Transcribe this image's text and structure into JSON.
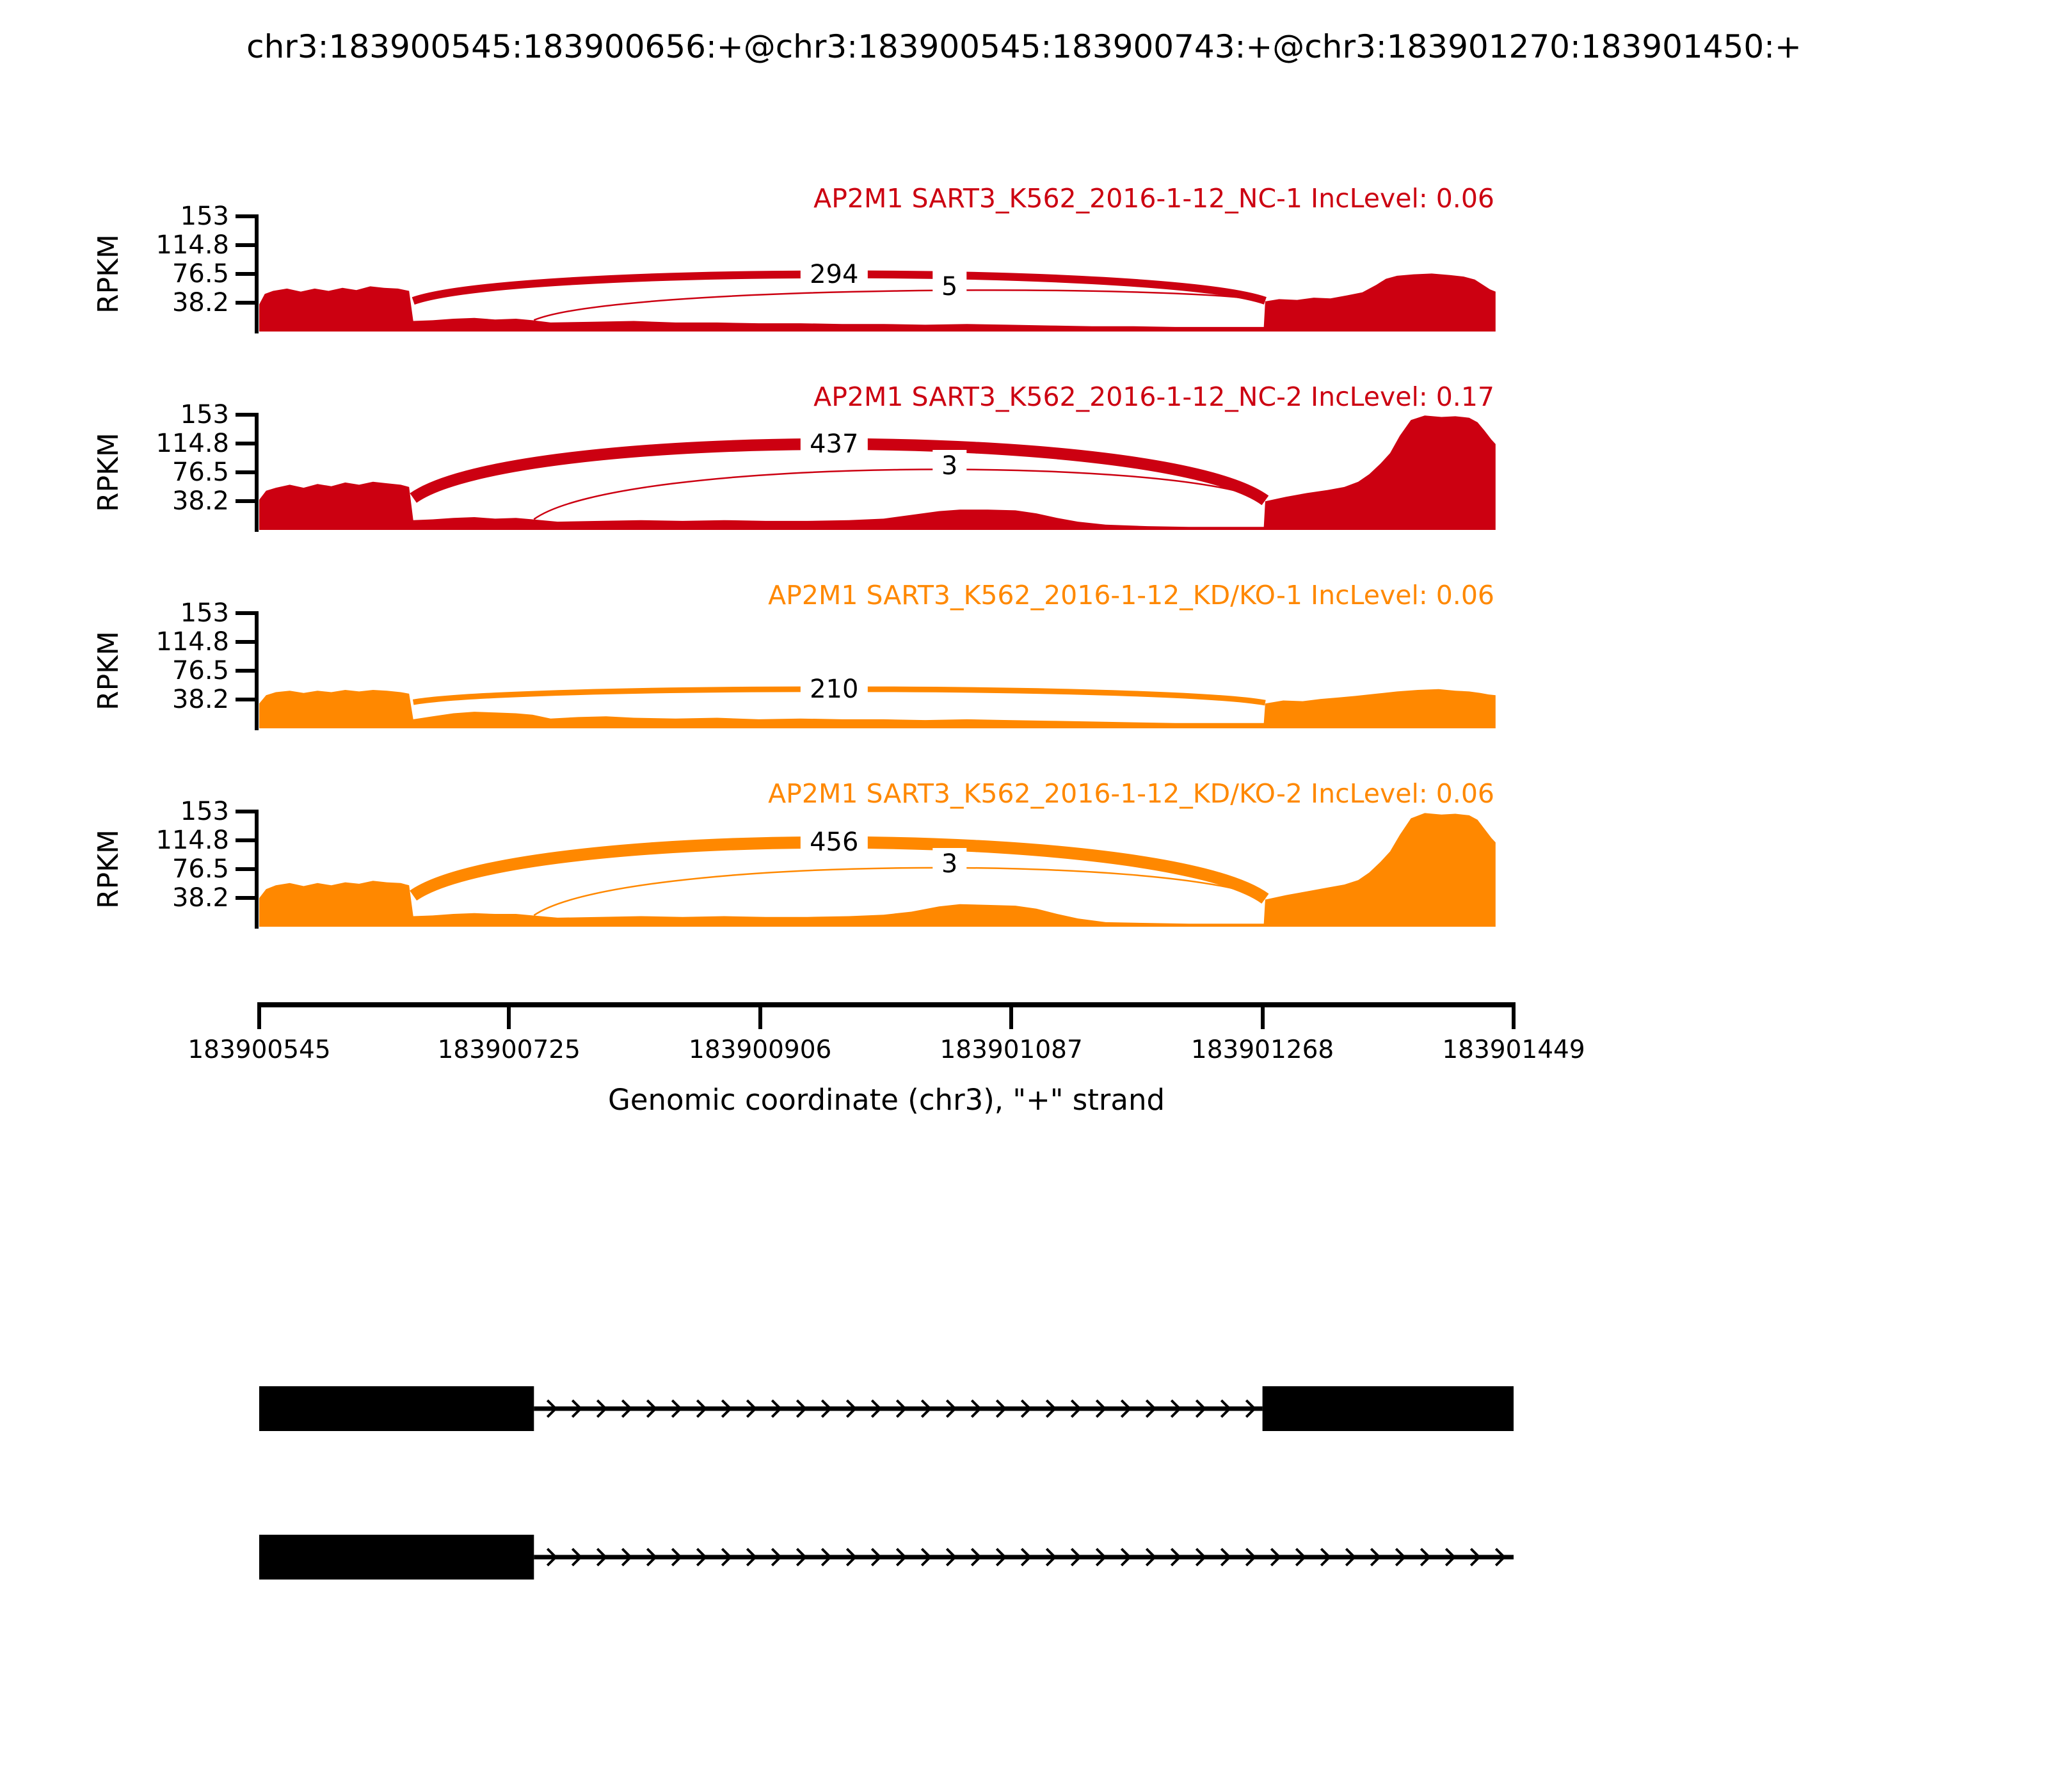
{
  "title": "chr3:183900545:183900656:+@chr3:183900545:183900743:+@chr3:183901270:183901450:+",
  "colors": {
    "group1": "#CC0011",
    "group2": "#FF8800",
    "axis": "#000000",
    "exon": "#000000"
  },
  "y_axis": {
    "label": "RPKM",
    "tick_labels": [
      "153",
      "114.8",
      "76.5",
      "38.2"
    ],
    "ticks": [
      153,
      114.8,
      76.5,
      38.2
    ],
    "ylim": [
      0,
      153
    ]
  },
  "x_axis": {
    "label": "Genomic coordinate (chr3), \"+\" strand",
    "start": 183900545,
    "end": 183901449,
    "ticks": [
      183900545,
      183900725,
      183900906,
      183901087,
      183901268,
      183901449
    ],
    "tick_labels": [
      "183900545",
      "183900725",
      "183900906",
      "183901087",
      "183901268",
      "183901449"
    ]
  },
  "chart_data": {
    "type": "area",
    "description": "rMATS sashimi plot: per-sample RPKM coverage with splice-junction arcs",
    "coverage_origin_bp": 183900545,
    "tracks": [
      {
        "label": "AP2M1 SART3_K562_2016-1-12_NC-1 IncLevel: 0.06",
        "group": "group1",
        "color": "#CC0011",
        "inc_level": "0.06",
        "junctions": [
          {
            "from": 183900656,
            "to": 183901270,
            "count": "294",
            "arc_peak_rpkm": 76
          },
          {
            "from": 183900743,
            "to": 183901270,
            "count": "5",
            "arc_peak_rpkm": 54,
            "thin": true
          }
        ],
        "coverage": [
          [
            0,
            36
          ],
          [
            4,
            50
          ],
          [
            10,
            54
          ],
          [
            20,
            57
          ],
          [
            30,
            53
          ],
          [
            40,
            57
          ],
          [
            50,
            54
          ],
          [
            60,
            58
          ],
          [
            70,
            55
          ],
          [
            80,
            60
          ],
          [
            90,
            58
          ],
          [
            100,
            57
          ],
          [
            108,
            54
          ],
          [
            111,
            14
          ],
          [
            125,
            15
          ],
          [
            140,
            17
          ],
          [
            155,
            18
          ],
          [
            170,
            16
          ],
          [
            185,
            17
          ],
          [
            197,
            15
          ],
          [
            210,
            12
          ],
          [
            240,
            13
          ],
          [
            270,
            14
          ],
          [
            300,
            12
          ],
          [
            330,
            12
          ],
          [
            360,
            11
          ],
          [
            390,
            11
          ],
          [
            420,
            10
          ],
          [
            450,
            10
          ],
          [
            480,
            9
          ],
          [
            510,
            10
          ],
          [
            540,
            9
          ],
          [
            570,
            8
          ],
          [
            600,
            7
          ],
          [
            630,
            7
          ],
          [
            660,
            6
          ],
          [
            690,
            6
          ],
          [
            715,
            6
          ],
          [
            724,
            6
          ],
          [
            725,
            40
          ],
          [
            735,
            43
          ],
          [
            748,
            42
          ],
          [
            760,
            45
          ],
          [
            772,
            44
          ],
          [
            784,
            48
          ],
          [
            795,
            52
          ],
          [
            805,
            62
          ],
          [
            812,
            70
          ],
          [
            820,
            74
          ],
          [
            832,
            76
          ],
          [
            845,
            77
          ],
          [
            858,
            75
          ],
          [
            868,
            73
          ],
          [
            876,
            69
          ],
          [
            882,
            62
          ],
          [
            887,
            56
          ],
          [
            891,
            53
          ]
        ]
      },
      {
        "label": "AP2M1 SART3_K562_2016-1-12_NC-2 IncLevel: 0.17",
        "group": "group1",
        "color": "#CC0011",
        "inc_level": "0.17",
        "junctions": [
          {
            "from": 183900656,
            "to": 183901270,
            "count": "437",
            "arc_peak_rpkm": 114
          },
          {
            "from": 183900743,
            "to": 183901270,
            "count": "3",
            "arc_peak_rpkm": 80,
            "thin": true
          }
        ],
        "coverage": [
          [
            0,
            40
          ],
          [
            5,
            52
          ],
          [
            12,
            56
          ],
          [
            22,
            60
          ],
          [
            32,
            56
          ],
          [
            42,
            61
          ],
          [
            52,
            58
          ],
          [
            62,
            63
          ],
          [
            72,
            60
          ],
          [
            82,
            64
          ],
          [
            92,
            62
          ],
          [
            102,
            60
          ],
          [
            108,
            57
          ],
          [
            111,
            13
          ],
          [
            125,
            14
          ],
          [
            140,
            16
          ],
          [
            155,
            17
          ],
          [
            170,
            15
          ],
          [
            185,
            16
          ],
          [
            197,
            14
          ],
          [
            215,
            11
          ],
          [
            245,
            12
          ],
          [
            275,
            13
          ],
          [
            305,
            12
          ],
          [
            335,
            13
          ],
          [
            365,
            12
          ],
          [
            395,
            12
          ],
          [
            425,
            13
          ],
          [
            450,
            15
          ],
          [
            470,
            20
          ],
          [
            490,
            25
          ],
          [
            505,
            27
          ],
          [
            525,
            27
          ],
          [
            545,
            26
          ],
          [
            560,
            22
          ],
          [
            575,
            16
          ],
          [
            590,
            11
          ],
          [
            610,
            7
          ],
          [
            640,
            5
          ],
          [
            670,
            4
          ],
          [
            700,
            4
          ],
          [
            724,
            4
          ],
          [
            725,
            38
          ],
          [
            740,
            44
          ],
          [
            755,
            49
          ],
          [
            770,
            53
          ],
          [
            782,
            57
          ],
          [
            792,
            64
          ],
          [
            800,
            74
          ],
          [
            808,
            88
          ],
          [
            815,
            102
          ],
          [
            822,
            125
          ],
          [
            830,
            146
          ],
          [
            840,
            152
          ],
          [
            852,
            150
          ],
          [
            862,
            151
          ],
          [
            872,
            149
          ],
          [
            878,
            143
          ],
          [
            883,
            132
          ],
          [
            888,
            120
          ],
          [
            891,
            114
          ]
        ]
      },
      {
        "label": "AP2M1 SART3_K562_2016-1-12_KD/KO-1 IncLevel: 0.06",
        "group": "group2",
        "color": "#FF8800",
        "inc_level": "0.06",
        "junctions": [
          {
            "from": 183900656,
            "to": 183901270,
            "count": "210",
            "arc_peak_rpkm": 52
          }
        ],
        "coverage": [
          [
            0,
            33
          ],
          [
            5,
            44
          ],
          [
            12,
            48
          ],
          [
            22,
            50
          ],
          [
            32,
            47
          ],
          [
            42,
            50
          ],
          [
            52,
            48
          ],
          [
            62,
            51
          ],
          [
            72,
            49
          ],
          [
            82,
            51
          ],
          [
            92,
            50
          ],
          [
            102,
            48
          ],
          [
            108,
            46
          ],
          [
            111,
            12
          ],
          [
            125,
            16
          ],
          [
            140,
            20
          ],
          [
            155,
            22
          ],
          [
            170,
            21
          ],
          [
            185,
            20
          ],
          [
            197,
            18
          ],
          [
            210,
            13
          ],
          [
            230,
            15
          ],
          [
            250,
            16
          ],
          [
            270,
            14
          ],
          [
            300,
            13
          ],
          [
            330,
            14
          ],
          [
            360,
            12
          ],
          [
            390,
            13
          ],
          [
            420,
            12
          ],
          [
            450,
            12
          ],
          [
            480,
            11
          ],
          [
            510,
            12
          ],
          [
            540,
            11
          ],
          [
            570,
            10
          ],
          [
            600,
            9
          ],
          [
            630,
            8
          ],
          [
            660,
            7
          ],
          [
            690,
            7
          ],
          [
            715,
            7
          ],
          [
            724,
            7
          ],
          [
            725,
            33
          ],
          [
            738,
            37
          ],
          [
            752,
            36
          ],
          [
            765,
            39
          ],
          [
            778,
            41
          ],
          [
            790,
            43
          ],
          [
            805,
            46
          ],
          [
            820,
            49
          ],
          [
            835,
            51
          ],
          [
            850,
            52
          ],
          [
            862,
            50
          ],
          [
            872,
            49
          ],
          [
            880,
            47
          ],
          [
            886,
            45
          ],
          [
            891,
            44
          ]
        ]
      },
      {
        "label": "AP2M1 SART3_K562_2016-1-12_KD/KO-2 IncLevel: 0.06",
        "group": "group2",
        "color": "#FF8800",
        "inc_level": "0.06",
        "junctions": [
          {
            "from": 183900656,
            "to": 183901270,
            "count": "456",
            "arc_peak_rpkm": 112
          },
          {
            "from": 183900743,
            "to": 183901270,
            "count": "3",
            "arc_peak_rpkm": 78,
            "thin": true
          }
        ],
        "coverage": [
          [
            0,
            38
          ],
          [
            5,
            50
          ],
          [
            12,
            55
          ],
          [
            22,
            58
          ],
          [
            32,
            54
          ],
          [
            42,
            58
          ],
          [
            52,
            55
          ],
          [
            62,
            59
          ],
          [
            72,
            57
          ],
          [
            82,
            61
          ],
          [
            92,
            59
          ],
          [
            102,
            58
          ],
          [
            108,
            55
          ],
          [
            111,
            14
          ],
          [
            125,
            15
          ],
          [
            140,
            17
          ],
          [
            155,
            18
          ],
          [
            170,
            17
          ],
          [
            185,
            17
          ],
          [
            197,
            15
          ],
          [
            215,
            12
          ],
          [
            245,
            13
          ],
          [
            275,
            14
          ],
          [
            305,
            13
          ],
          [
            335,
            14
          ],
          [
            365,
            13
          ],
          [
            395,
            13
          ],
          [
            425,
            14
          ],
          [
            450,
            16
          ],
          [
            470,
            20
          ],
          [
            490,
            27
          ],
          [
            505,
            30
          ],
          [
            525,
            29
          ],
          [
            545,
            28
          ],
          [
            560,
            24
          ],
          [
            575,
            17
          ],
          [
            590,
            11
          ],
          [
            610,
            6
          ],
          [
            640,
            5
          ],
          [
            670,
            4
          ],
          [
            700,
            4
          ],
          [
            724,
            4
          ],
          [
            725,
            36
          ],
          [
            740,
            42
          ],
          [
            755,
            47
          ],
          [
            770,
            52
          ],
          [
            782,
            56
          ],
          [
            792,
            62
          ],
          [
            800,
            72
          ],
          [
            808,
            86
          ],
          [
            815,
            100
          ],
          [
            822,
            122
          ],
          [
            830,
            144
          ],
          [
            840,
            151
          ],
          [
            852,
            149
          ],
          [
            862,
            150
          ],
          [
            872,
            148
          ],
          [
            878,
            142
          ],
          [
            883,
            130
          ],
          [
            888,
            118
          ],
          [
            891,
            112
          ]
        ]
      }
    ]
  },
  "transcripts": [
    {
      "exons": [
        [
          183900545,
          183900743
        ],
        [
          183901268,
          183901449
        ]
      ],
      "intron_arrows": [
        [
          183900743,
          183901268
        ]
      ],
      "strand": "+"
    },
    {
      "exons": [
        [
          183900545,
          183900743
        ]
      ],
      "intron_arrows": [
        [
          183900743,
          183901449
        ]
      ],
      "strand": "+"
    }
  ]
}
